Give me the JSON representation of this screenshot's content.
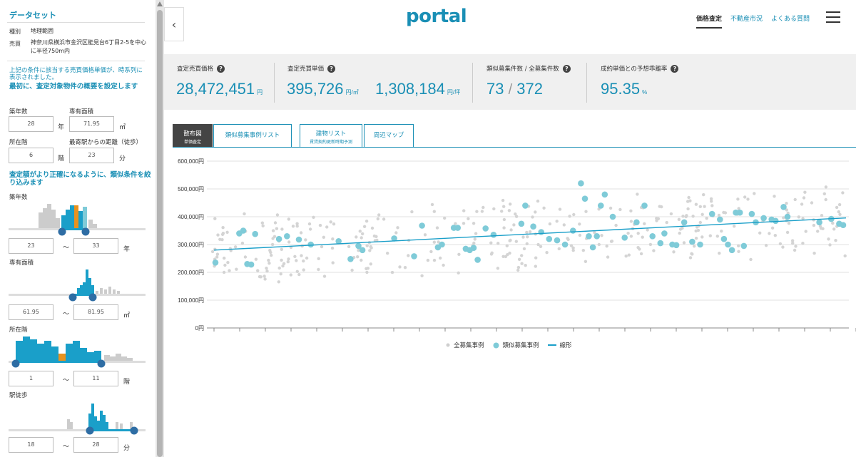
{
  "sidebar": {
    "title": "データセット",
    "type_key": "種別",
    "type_val": "地理範囲",
    "sale_key": "売買",
    "sale_val": "神奈川県横浜市金沢区能見台6丁目2-5を中心に半径750m内",
    "note": "上記の条件に該当する売買価格単価が、時系列に表示されました。",
    "heading1": "最初に、査定対象物件の概要を設定します",
    "age_label": "築年数",
    "age_value": "28",
    "age_unit": "年",
    "area_label": "専有面積",
    "area_value": "71.95",
    "area_unit": "㎡",
    "floor_label": "所在階",
    "floor_value": "6",
    "floor_unit": "階",
    "station_label": "最寄駅からの距離（徒歩）",
    "station_value": "23",
    "station_unit": "分",
    "heading2": "査定額がより正確になるように、類似条件を絞り込みます",
    "filters": [
      {
        "label": "築年数",
        "min": "23",
        "max": "33",
        "unit": "年"
      },
      {
        "label": "専有面積",
        "min": "61.95",
        "max": "81.95",
        "unit": "㎡"
      },
      {
        "label": "所在階",
        "min": "1",
        "max": "11",
        "unit": "階"
      },
      {
        "label": "駅徒歩",
        "min": "18",
        "max": "28",
        "unit": "分"
      }
    ],
    "range_sep": "〜"
  },
  "header": {
    "logo": "portal",
    "nav": [
      "価格査定",
      "不動産市況",
      "よくある質問"
    ]
  },
  "kpis": [
    {
      "label": "査定売買価格",
      "value": "28,472,451",
      "unit": "円"
    },
    {
      "label": "査定売買単価",
      "value": "395,726",
      "unit": "円/㎡",
      "value2": "1,308,184",
      "unit2": "円/坪"
    },
    {
      "label": "類似募集件数 / 全募集件数",
      "value": "73",
      "sep": "/",
      "value2": "372"
    },
    {
      "label": "成約単価との予想乖離率",
      "value": "95.35",
      "unit": "%"
    }
  ],
  "tabs": [
    {
      "label": "散布図",
      "sub": "単価査定"
    },
    {
      "label": "類似募集事例リスト",
      "sub": ""
    },
    {
      "label": "建物リスト",
      "sub": "賃貸契約更新時期予測"
    },
    {
      "label": "周辺マップ",
      "sub": ""
    }
  ],
  "colors": {
    "accent": "#1a8fb5",
    "similar": "#7fcbd8",
    "all": "#cfcfcf"
  },
  "chart_data": {
    "type": "scatter",
    "ylim": [
      0,
      600000
    ],
    "yticks": [
      "0円",
      "100,000円",
      "200,000円",
      "300,000円",
      "400,000円",
      "500,000円",
      "600,000円"
    ],
    "legend": [
      "全募集事例",
      "類似募集事例",
      "線形"
    ],
    "trend": {
      "start": 280000,
      "end": 395726
    },
    "similar_points": [
      [
        0.02,
        235000
      ],
      [
        0.08,
        340000
      ],
      [
        0.09,
        350000
      ],
      [
        0.1,
        230000
      ],
      [
        0.11,
        228000
      ],
      [
        0.12,
        338000
      ],
      [
        0.18,
        320000
      ],
      [
        0.2,
        330000
      ],
      [
        0.23,
        318000
      ],
      [
        0.26,
        300000
      ],
      [
        0.33,
        312000
      ],
      [
        0.36,
        248000
      ],
      [
        0.38,
        295000
      ],
      [
        0.39,
        280000
      ],
      [
        0.47,
        322000
      ],
      [
        0.52,
        258000
      ],
      [
        0.54,
        368000
      ],
      [
        0.58,
        290000
      ],
      [
        0.59,
        300000
      ],
      [
        0.62,
        360000
      ],
      [
        0.63,
        360000
      ],
      [
        0.65,
        285000
      ],
      [
        0.66,
        280000
      ],
      [
        0.67,
        288000
      ],
      [
        0.68,
        245000
      ],
      [
        0.7,
        358000
      ],
      [
        0.72,
        335000
      ],
      [
        0.79,
        375000
      ],
      [
        0.8,
        440000
      ],
      [
        0.82,
        365000
      ],
      [
        0.84,
        345000
      ],
      [
        0.86,
        320000
      ],
      [
        0.88,
        315000
      ],
      [
        0.9,
        300000
      ],
      [
        0.92,
        350000
      ],
      [
        0.94,
        520000
      ],
      [
        0.95,
        465000
      ],
      [
        0.96,
        330000
      ],
      [
        0.97,
        290000
      ],
      [
        0.98,
        330000
      ],
      [
        0.99,
        440000
      ],
      [
        1.0,
        480000
      ],
      [
        1.02,
        400000
      ],
      [
        1.05,
        325000
      ],
      [
        1.08,
        380000
      ],
      [
        1.1,
        440000
      ],
      [
        1.12,
        330000
      ],
      [
        1.14,
        305000
      ],
      [
        1.15,
        340000
      ],
      [
        1.17,
        300000
      ],
      [
        1.18,
        298000
      ],
      [
        1.2,
        380000
      ],
      [
        1.22,
        310000
      ],
      [
        1.24,
        300000
      ],
      [
        1.27,
        410000
      ],
      [
        1.29,
        390000
      ],
      [
        1.3,
        320000
      ],
      [
        1.31,
        300000
      ],
      [
        1.32,
        280000
      ],
      [
        1.33,
        415000
      ],
      [
        1.34,
        415000
      ],
      [
        1.35,
        295000
      ],
      [
        1.37,
        410000
      ],
      [
        1.38,
        380000
      ],
      [
        1.4,
        395000
      ],
      [
        1.42,
        390000
      ],
      [
        1.43,
        385000
      ],
      [
        1.45,
        435000
      ],
      [
        1.46,
        400000
      ],
      [
        1.54,
        380000
      ],
      [
        1.57,
        392000
      ],
      [
        1.59,
        375000
      ],
      [
        1.6,
        370000
      ]
    ],
    "all_points_count": 372
  }
}
